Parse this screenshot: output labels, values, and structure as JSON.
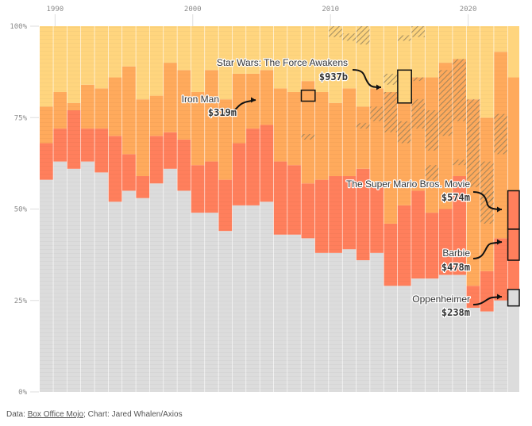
{
  "chart_data": {
    "type": "bar",
    "subtype": "stacked-100-percent",
    "title": "",
    "xlabel": "",
    "ylabel": "",
    "ylim": [
      0,
      100
    ],
    "y_ticks": [
      {
        "value": 0,
        "label": "0%"
      },
      {
        "value": 25,
        "label": "25%"
      },
      {
        "value": 50,
        "label": "50%"
      },
      {
        "value": 75,
        "label": "75%"
      },
      {
        "value": 100,
        "label": "100%"
      }
    ],
    "x_ticks": [
      {
        "value": 1990,
        "label": "1990"
      },
      {
        "value": 2000,
        "label": "2000"
      },
      {
        "value": 2010,
        "label": "2010"
      },
      {
        "value": 2020,
        "label": "2020"
      }
    ],
    "grid": false,
    "legend": "none",
    "colors": {
      "other": "#dcdcdc",
      "tier3": "#ff7f5c",
      "tier2": "#ffaa5c",
      "tier1": "#ffd57e",
      "hatch": "#8a7a5a",
      "annotation": "#111111"
    },
    "series_order": [
      "other",
      "tier3",
      "tier2",
      "tier1"
    ],
    "columns": [
      {
        "year": 1989,
        "other": 58,
        "tier3": 68,
        "tier2": 78
      },
      {
        "year": 1990,
        "other": 63,
        "tier3": 72,
        "tier2": 82
      },
      {
        "year": 1991,
        "other": 61,
        "tier3": 77,
        "tier2": 79
      },
      {
        "year": 1992,
        "other": 63,
        "tier3": 72,
        "tier2": 84
      },
      {
        "year": 1993,
        "other": 60,
        "tier3": 72,
        "tier2": 83
      },
      {
        "year": 1994,
        "other": 52,
        "tier3": 70,
        "tier2": 86
      },
      {
        "year": 1995,
        "other": 55,
        "tier3": 65,
        "tier2": 89
      },
      {
        "year": 1996,
        "other": 53,
        "tier3": 59,
        "tier2": 80
      },
      {
        "year": 1997,
        "other": 57,
        "tier3": 70,
        "tier2": 81
      },
      {
        "year": 1998,
        "other": 61,
        "tier3": 71,
        "tier2": 90
      },
      {
        "year": 1999,
        "other": 55,
        "tier3": 69,
        "tier2": 88
      },
      {
        "year": 2000,
        "other": 49,
        "tier3": 62,
        "tier2": 82
      },
      {
        "year": 2001,
        "other": 49,
        "tier3": 63,
        "tier2": 88
      },
      {
        "year": 2002,
        "other": 44,
        "tier3": 58,
        "tier2": 80
      },
      {
        "year": 2003,
        "other": 51,
        "tier3": 68,
        "tier2": 87
      },
      {
        "year": 2004,
        "other": 51,
        "tier3": 72,
        "tier2": 87
      },
      {
        "year": 2005,
        "other": 52,
        "tier3": 73,
        "tier2": 88
      },
      {
        "year": 2006,
        "other": 43,
        "tier3": 63,
        "tier2": 83
      },
      {
        "year": 2007,
        "other": 43,
        "tier3": 62,
        "tier2": 82
      },
      {
        "year": 2008,
        "other": 42,
        "tier3": 57,
        "tier2": 85
      },
      {
        "year": 2009,
        "other": 38,
        "tier3": 58,
        "tier2": 82
      },
      {
        "year": 2010,
        "other": 38,
        "tier3": 59,
        "tier2": 79
      },
      {
        "year": 2011,
        "other": 39,
        "tier3": 59,
        "tier2": 83
      },
      {
        "year": 2012,
        "other": 36,
        "tier3": 61,
        "tier2": 78
      },
      {
        "year": 2013,
        "other": 38,
        "tier3": 56,
        "tier2": 83
      },
      {
        "year": 2014,
        "other": 29,
        "tier3": 46,
        "tier2": 82
      },
      {
        "year": 2015,
        "other": 29,
        "tier3": 51,
        "tier2": 79
      },
      {
        "year": 2016,
        "other": 31,
        "tier3": 55,
        "tier2": 86
      },
      {
        "year": 2017,
        "other": 31,
        "tier3": 49,
        "tier2": 86
      },
      {
        "year": 2018,
        "other": 32,
        "tier3": 50,
        "tier2": 90
      },
      {
        "year": 2019,
        "other": 32,
        "tier3": 59,
        "tier2": 91
      },
      {
        "year": 2020,
        "other": 23,
        "tier3": 29,
        "tier2": 80
      },
      {
        "year": 2021,
        "other": 22,
        "tier3": 33,
        "tier2": 75
      },
      {
        "year": 2022,
        "other": 25,
        "tier3": 42,
        "tier2": 93
      }
    ],
    "annotations": [
      {
        "title": "Iron Man",
        "value": "$319m",
        "year": 2008,
        "box_low": 79.5,
        "box_high": 82.5
      },
      {
        "title": "Star Wars: The Force Awakens",
        "value": "$937b",
        "year": 2015,
        "box_low": 79,
        "box_high": 88
      },
      {
        "title": "The Super Mario Bros. Movie",
        "value": "$574m",
        "year": 2023,
        "box_low": 44.5,
        "box_high": 55
      },
      {
        "title": "Barbie",
        "value": "$478m",
        "year": 2023,
        "box_low": 36,
        "box_high": 44.5
      },
      {
        "title": "Oppenheimer",
        "value": "$238m",
        "year": 2023,
        "box_low": 23.5,
        "box_high": 28
      }
    ]
  },
  "footer": {
    "data_prefix": "Data: ",
    "data_source": "Box Office Mojo",
    "credit": "; Chart: Jared Whalen/Axios"
  }
}
